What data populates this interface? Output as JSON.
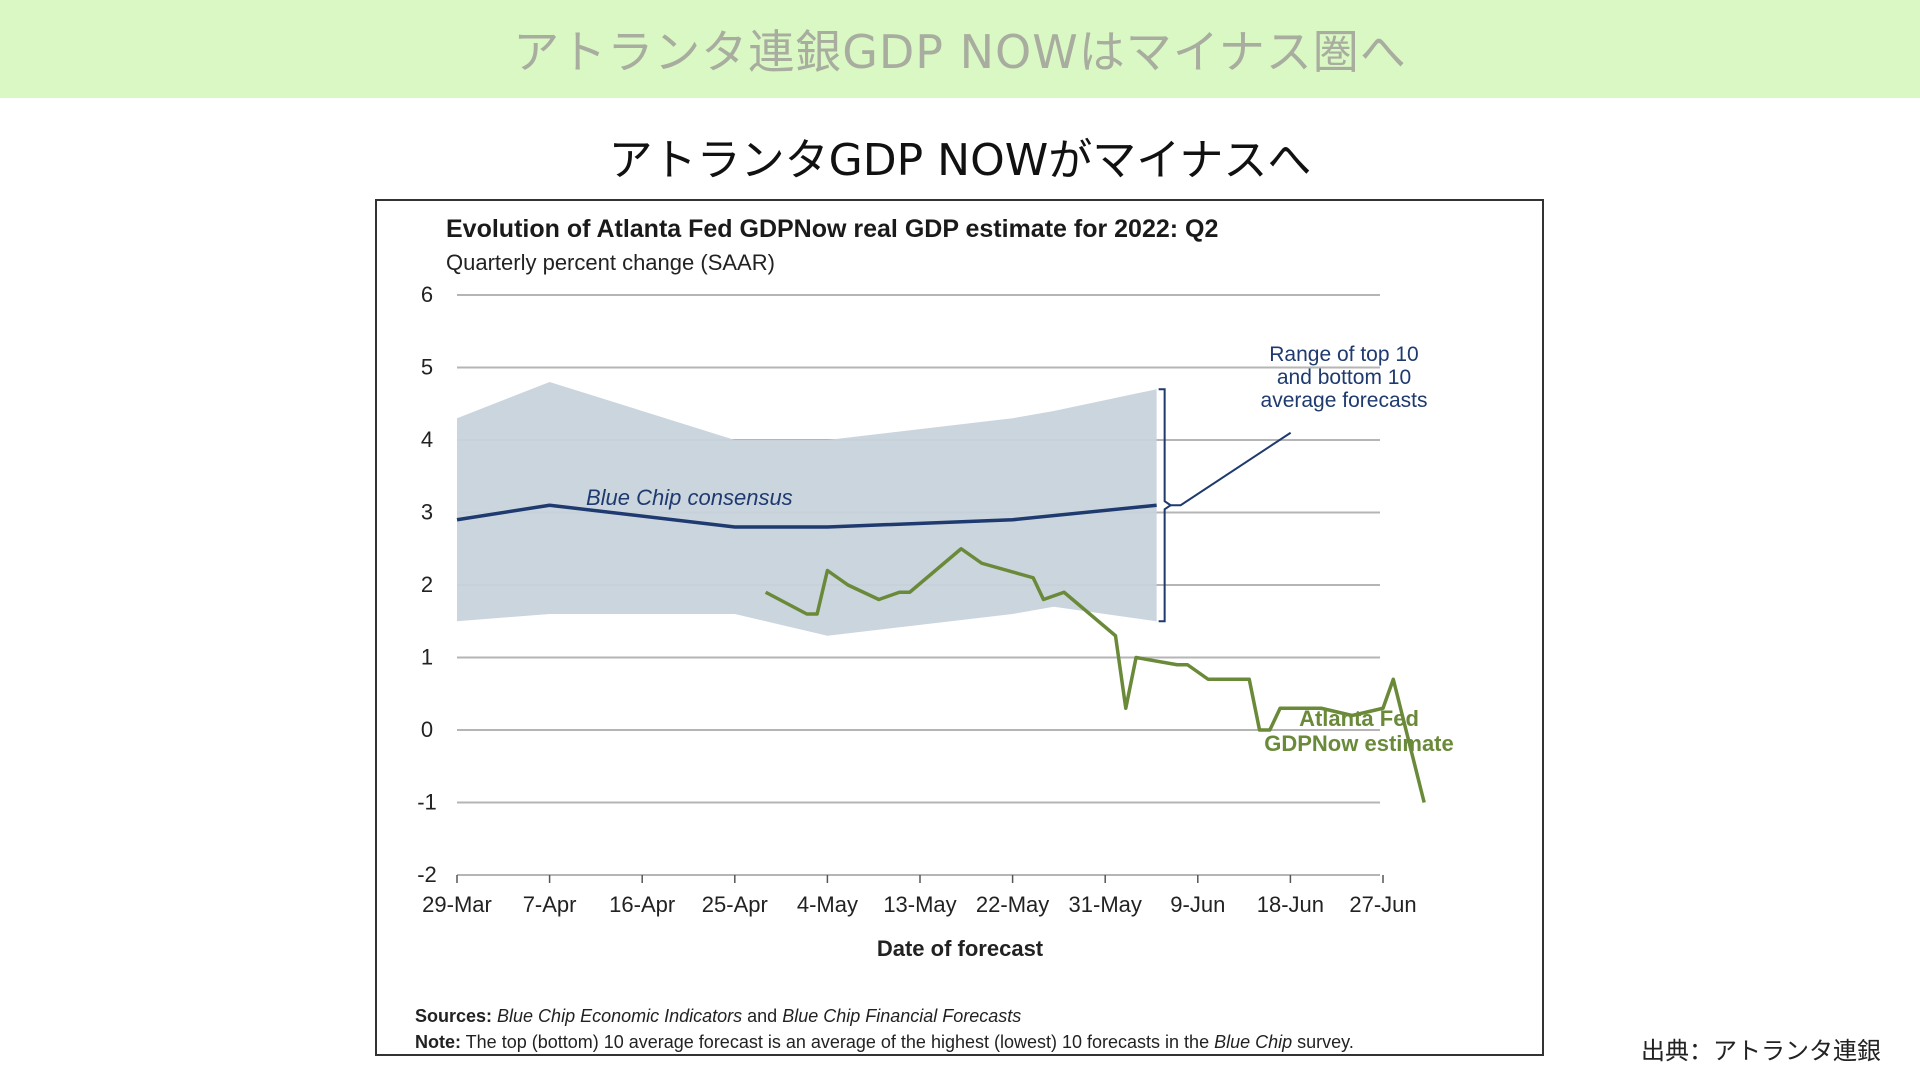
{
  "banner": {
    "text": "アトランタ連銀GDP NOWはマイナス圏へ"
  },
  "heading": {
    "text": "アトランタGDP NOWがマイナスへ"
  },
  "source_credit": "出典：アトランタ連銀",
  "colors": {
    "banner_bg": "#d9f8c4",
    "range_band": "#c8d3dc",
    "consensus_line": "#1e3a6e",
    "gdpnow_line": "#6a8a3a",
    "grid": "#b5b5b5"
  },
  "chart_data": {
    "type": "line",
    "title": "Evolution of Atlanta Fed GDPNow real GDP estimate for 2022: Q2",
    "subtitle": "Quarterly percent change (SAAR)",
    "xlabel": "Date of forecast",
    "ylabel": "",
    "ylim": [
      -2,
      6
    ],
    "yticks": [
      6,
      5,
      4,
      3,
      2,
      1,
      0,
      -1,
      -2
    ],
    "x_start": "2022-03-29",
    "x_end": "2022-07-01",
    "x_ticks": [
      {
        "date": "2022-03-29",
        "label": "29-Mar"
      },
      {
        "date": "2022-04-07",
        "label": "7-Apr"
      },
      {
        "date": "2022-04-16",
        "label": "16-Apr"
      },
      {
        "date": "2022-04-25",
        "label": "25-Apr"
      },
      {
        "date": "2022-05-04",
        "label": "4-May"
      },
      {
        "date": "2022-05-13",
        "label": "13-May"
      },
      {
        "date": "2022-05-22",
        "label": "22-May"
      },
      {
        "date": "2022-05-31",
        "label": "31-May"
      },
      {
        "date": "2022-06-09",
        "label": "9-Jun"
      },
      {
        "date": "2022-06-18",
        "label": "18-Jun"
      },
      {
        "date": "2022-06-27",
        "label": "27-Jun"
      }
    ],
    "grid": true,
    "series": [
      {
        "name": "Blue Chip consensus",
        "kind": "line",
        "color": "#1e3a6e",
        "points": [
          {
            "x": "2022-03-29",
            "y": 2.9
          },
          {
            "x": "2022-04-07",
            "y": 3.1
          },
          {
            "x": "2022-04-25",
            "y": 2.8
          },
          {
            "x": "2022-05-04",
            "y": 2.8
          },
          {
            "x": "2022-05-22",
            "y": 2.9
          },
          {
            "x": "2022-06-05",
            "y": 3.1
          }
        ]
      },
      {
        "name": "Range of top 10 and bottom 10 average forecasts",
        "kind": "band",
        "color": "#c8d3dc",
        "points": [
          {
            "x": "2022-03-29",
            "low": 1.5,
            "high": 4.3
          },
          {
            "x": "2022-04-07",
            "low": 1.6,
            "high": 4.8
          },
          {
            "x": "2022-04-25",
            "low": 1.6,
            "high": 4.0
          },
          {
            "x": "2022-05-04",
            "low": 1.3,
            "high": 4.0
          },
          {
            "x": "2022-05-22",
            "low": 1.6,
            "high": 4.3
          },
          {
            "x": "2022-05-26",
            "low": 1.7,
            "high": 4.4
          },
          {
            "x": "2022-06-05",
            "low": 1.5,
            "high": 4.7
          }
        ]
      },
      {
        "name": "Atlanta Fed GDPNow estimate",
        "kind": "line",
        "color": "#6a8a3a",
        "points": [
          {
            "x": "2022-04-28",
            "y": 1.9
          },
          {
            "x": "2022-05-02",
            "y": 1.6
          },
          {
            "x": "2022-05-03",
            "y": 1.6
          },
          {
            "x": "2022-05-04",
            "y": 2.2
          },
          {
            "x": "2022-05-06",
            "y": 2.0
          },
          {
            "x": "2022-05-09",
            "y": 1.8
          },
          {
            "x": "2022-05-11",
            "y": 1.9
          },
          {
            "x": "2022-05-12",
            "y": 1.9
          },
          {
            "x": "2022-05-17",
            "y": 2.5
          },
          {
            "x": "2022-05-19",
            "y": 2.3
          },
          {
            "x": "2022-05-24",
            "y": 2.1
          },
          {
            "x": "2022-05-25",
            "y": 1.8
          },
          {
            "x": "2022-05-27",
            "y": 1.9
          },
          {
            "x": "2022-06-01",
            "y": 1.3
          },
          {
            "x": "2022-06-02",
            "y": 0.3
          },
          {
            "x": "2022-06-03",
            "y": 1.0
          },
          {
            "x": "2022-06-07",
            "y": 0.9
          },
          {
            "x": "2022-06-08",
            "y": 0.9
          },
          {
            "x": "2022-06-10",
            "y": 0.7
          },
          {
            "x": "2022-06-14",
            "y": 0.7
          },
          {
            "x": "2022-06-15",
            "y": 0.0
          },
          {
            "x": "2022-06-16",
            "y": 0.0
          },
          {
            "x": "2022-06-17",
            "y": 0.3
          },
          {
            "x": "2022-06-21",
            "y": 0.3
          },
          {
            "x": "2022-06-24",
            "y": 0.2
          },
          {
            "x": "2022-06-27",
            "y": 0.3
          },
          {
            "x": "2022-06-28",
            "y": 0.7
          },
          {
            "x": "2022-07-01",
            "y": -1.0
          }
        ]
      }
    ],
    "annotations": {
      "consensus_label": "Blue Chip consensus",
      "range_label_lines": [
        "Range of top 10",
        "and bottom 10",
        "average forecasts"
      ],
      "gdpnow_label_lines": [
        "Atlanta Fed",
        "GDPNow estimate"
      ]
    },
    "sources": {
      "prefix": "Sources:",
      "text1": "Blue Chip Economic Indicators",
      "and": " and ",
      "text2": "Blue Chip Financial Forecasts"
    },
    "note": {
      "prefix": "Note:",
      "text": " The top (bottom) 10 average forecast is an average of the highest (lowest) 10 forecasts in the ",
      "italic": "Blue Chip",
      "suffix": " survey."
    }
  }
}
